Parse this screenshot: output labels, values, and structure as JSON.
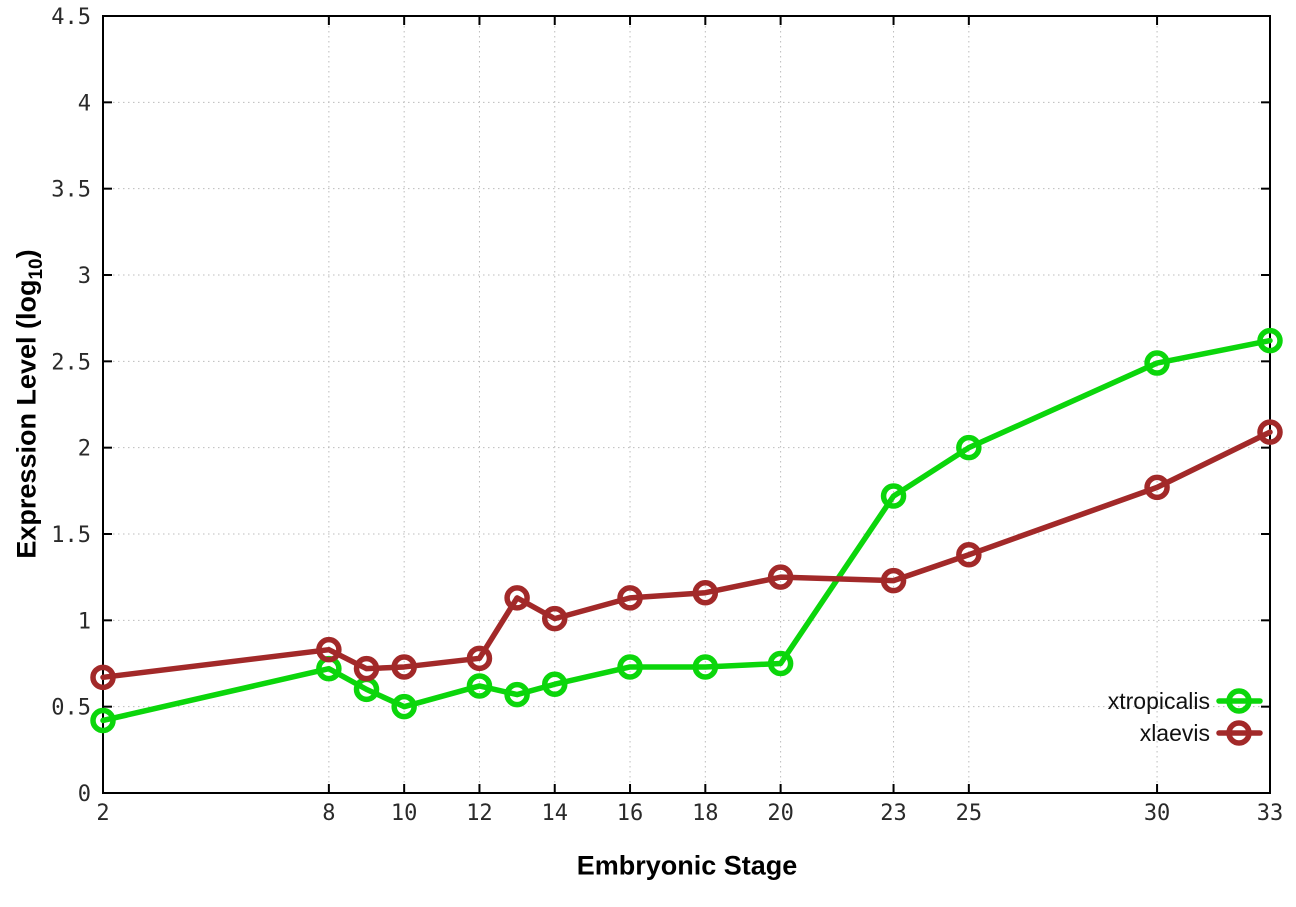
{
  "chart_data": {
    "type": "line",
    "title": "",
    "xlabel": "Embryonic Stage",
    "ylabel": "Expression Level (log10)",
    "ylabel_parts": {
      "base": "Expression Level (log",
      "sub": "10",
      "close": ")"
    },
    "x": [
      2,
      8,
      9,
      10,
      12,
      13,
      14,
      16,
      18,
      20,
      23,
      25,
      30,
      33
    ],
    "series": [
      {
        "name": "xtropicalis",
        "color": "#0bd60b",
        "values": [
          0.42,
          0.72,
          0.6,
          0.5,
          0.62,
          0.57,
          0.63,
          0.73,
          0.73,
          0.75,
          1.72,
          2.0,
          2.49,
          2.62
        ]
      },
      {
        "name": "xlaevis",
        "color": "#a22929",
        "values": [
          0.67,
          0.83,
          0.72,
          0.73,
          0.78,
          1.13,
          1.01,
          1.13,
          1.16,
          1.25,
          1.23,
          1.38,
          1.77,
          2.09
        ]
      }
    ],
    "xlim": [
      2,
      33
    ],
    "ylim": [
      0,
      4.5
    ],
    "xticks": [
      2,
      8,
      10,
      12,
      14,
      16,
      18,
      20,
      23,
      25,
      30,
      33
    ],
    "xtick_labels": [
      "2",
      "8",
      "10",
      "12",
      "14",
      "16",
      "18",
      "20",
      "23",
      "25",
      "30",
      "33"
    ],
    "yticks": [
      0,
      0.5,
      1,
      1.5,
      2,
      2.5,
      3,
      3.5,
      4,
      4.5
    ],
    "ytick_labels": [
      "0",
      "0.5",
      "1",
      "1.5",
      "2",
      "2.5",
      "3",
      "3.5",
      "4",
      "4.5"
    ],
    "grid": true,
    "legend_position": "bottom-right",
    "marker": "open-circle",
    "colors": {
      "background": "#ffffff",
      "border": "#000000",
      "grid": "#bcbcbc",
      "tick_text": "#2a2a2a",
      "legend_text": "#111111"
    }
  }
}
